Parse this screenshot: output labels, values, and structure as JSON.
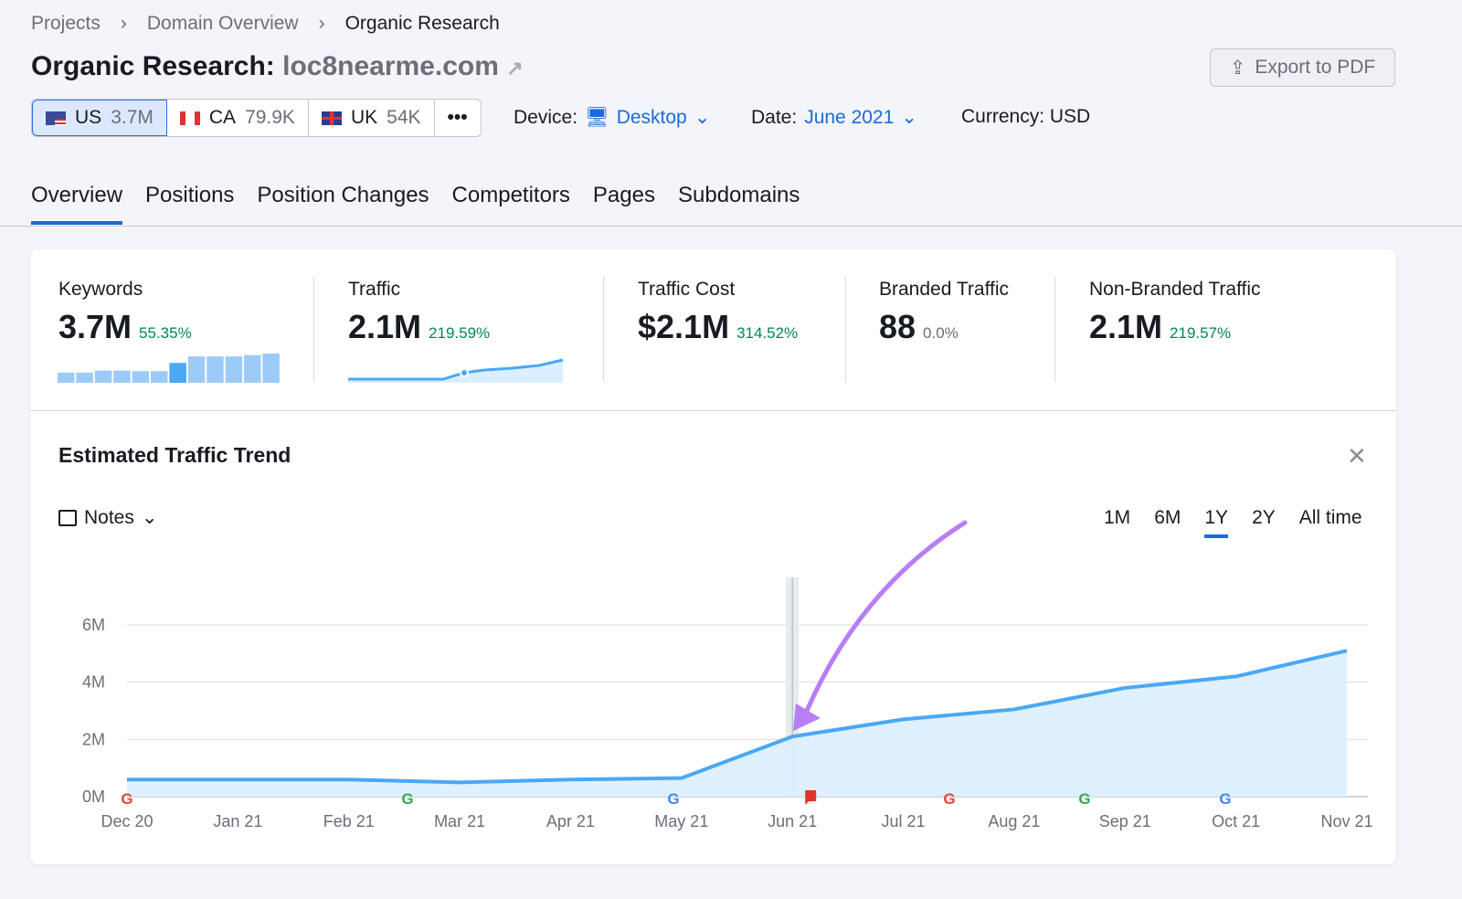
{
  "breadcrumb": [
    "Projects",
    "Domain Overview",
    "Organic Research"
  ],
  "title": {
    "prefix": "Organic Research:",
    "domain": "loc8nearme.com"
  },
  "export_label": "Export to PDF",
  "databases": [
    {
      "code": "US",
      "value": "3.7M"
    },
    {
      "code": "CA",
      "value": "79.9K"
    },
    {
      "code": "UK",
      "value": "54K"
    }
  ],
  "more_label": "•••",
  "device": {
    "label": "Device:",
    "value": "Desktop"
  },
  "date": {
    "label": "Date:",
    "value": "June 2021"
  },
  "currency": "Currency: USD",
  "tabs": [
    "Overview",
    "Positions",
    "Position Changes",
    "Competitors",
    "Pages",
    "Subdomains"
  ],
  "metrics": [
    {
      "label": "Keywords",
      "value": "3.7M",
      "change": "55.35%"
    },
    {
      "label": "Traffic",
      "value": "2.1M",
      "change": "219.59%"
    },
    {
      "label": "Traffic Cost",
      "value": "$2.1M",
      "change": "314.52%"
    },
    {
      "label": "Branded Traffic",
      "value": "88",
      "change": "0.0%"
    },
    {
      "label": "Non-Branded Traffic",
      "value": "2.1M",
      "change": "219.57%"
    }
  ],
  "keywords_sparkbars": [
    0.35,
    0.35,
    0.42,
    0.42,
    0.4,
    0.4,
    0.68,
    0.9,
    0.9,
    0.9,
    0.95,
    1.0
  ],
  "chart_title": "Estimated Traffic Trend",
  "notes_label": "Notes",
  "periods": [
    "1M",
    "6M",
    "1Y",
    "2Y",
    "All time"
  ],
  "active_period": "1Y",
  "colors": {
    "accent": "#1a6be0",
    "line": "#4aa8f5",
    "fill": "#dcefff",
    "positive": "#00855d",
    "arrow": "#b77ef5"
  },
  "chart_data": {
    "type": "area",
    "x": [
      "Dec 20",
      "Jan 21",
      "Feb 21",
      "Mar 21",
      "Apr 21",
      "May 21",
      "Jun 21",
      "Jul 21",
      "Aug 21",
      "Sep 21",
      "Oct 21",
      "Nov 21"
    ],
    "values": [
      0.6,
      0.6,
      0.6,
      0.5,
      0.6,
      0.65,
      2.1,
      2.7,
      3.05,
      3.8,
      4.2,
      5.1
    ],
    "unit": "M",
    "yticks": [
      "0M",
      "2M",
      "4M",
      "6M"
    ],
    "ylim": [
      0,
      6
    ],
    "grid": true,
    "selected": "Jun 21",
    "google_update_markers": [
      "Dec 20",
      "Feb 21",
      "May 21",
      "Jul 21",
      "Aug 21",
      "Sep 21"
    ],
    "note_markers": [
      "Jun 21"
    ]
  }
}
